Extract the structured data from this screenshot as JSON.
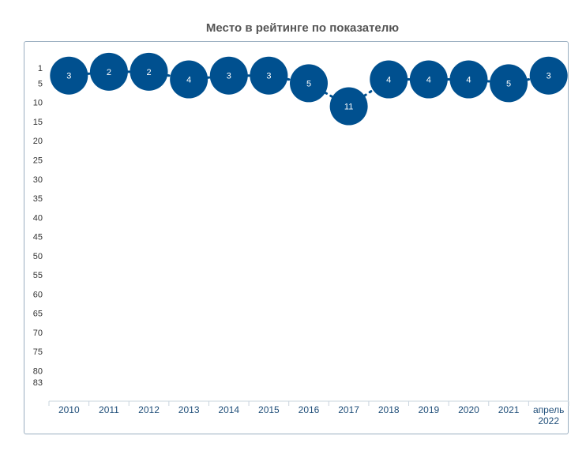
{
  "chart_data": {
    "type": "scatter",
    "title": "Место в рейтинге по показателю",
    "xlabel": "",
    "ylabel": "",
    "categories": [
      "2010",
      "2011",
      "2012",
      "2013",
      "2014",
      "2015",
      "2016",
      "2017",
      "2018",
      "2019",
      "2020",
      "2021",
      "апрель 2022"
    ],
    "values": [
      3,
      2,
      2,
      4,
      3,
      3,
      5,
      11,
      4,
      4,
      4,
      5,
      3
    ],
    "y_ticks": [
      1,
      5,
      10,
      15,
      20,
      25,
      30,
      35,
      40,
      45,
      50,
      55,
      60,
      65,
      70,
      75,
      80,
      83
    ],
    "ylim": [
      83,
      1
    ],
    "y_reversed": true,
    "grid": false,
    "legend": "none",
    "marker_color": "#00508f",
    "connector_color": "#00508f"
  }
}
